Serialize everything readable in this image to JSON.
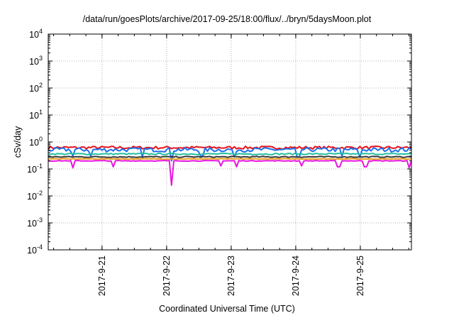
{
  "chart_data": {
    "type": "line",
    "title": "/data/run/goesPlots/archive/2017-09-25/18:00/flux/../bryn/5daysMoon.plot",
    "xlabel": "Coordinated Universal Time (UTC)",
    "ylabel": "cSv/day",
    "yscale": "log",
    "ylim": [
      0.0001,
      10000
    ],
    "xlim": [
      "2017-09-20T04:00",
      "2017-09-25T19:00"
    ],
    "grid": true,
    "xticks": [
      {
        "date": "2017-09-21T00:00",
        "label": "2017-9-21"
      },
      {
        "date": "2017-09-22T00:00",
        "label": "2017-9-22"
      },
      {
        "date": "2017-09-23T00:00",
        "label": "2017-9-23"
      },
      {
        "date": "2017-09-24T00:00",
        "label": "2017-9-24"
      },
      {
        "date": "2017-09-25T00:00",
        "label": "2017-9-25"
      }
    ],
    "yticks": [
      {
        "value": 0.0001,
        "base": "10",
        "exp": "-4"
      },
      {
        "value": 0.001,
        "base": "10",
        "exp": "-3"
      },
      {
        "value": 0.01,
        "base": "10",
        "exp": "-2"
      },
      {
        "value": 0.1,
        "base": "10",
        "exp": "-1"
      },
      {
        "value": 1,
        "base": "10",
        "exp": "0"
      },
      {
        "value": 10,
        "base": "10",
        "exp": "1"
      },
      {
        "value": 100,
        "base": "10",
        "exp": "2"
      },
      {
        "value": 1000,
        "base": "10",
        "exp": "3"
      },
      {
        "value": 10000,
        "base": "10",
        "exp": "4"
      }
    ],
    "series": [
      {
        "color": "#e8111a",
        "level": 0.62,
        "jitter": 0.12,
        "dips": []
      },
      {
        "color": "#1f6fe8",
        "level": 0.52,
        "jitter": 0.18,
        "dips": [
          {
            "date": "2017-09-20T13:00",
            "value": 0.3
          },
          {
            "date": "2017-09-20T20:00",
            "value": 0.3
          },
          {
            "date": "2017-09-21T15:00",
            "value": 0.28
          },
          {
            "date": "2017-09-22T02:00",
            "value": 0.2
          },
          {
            "date": "2017-09-22T13:00",
            "value": 0.3
          },
          {
            "date": "2017-09-23T01:00",
            "value": 0.28
          },
          {
            "date": "2017-09-24T01:00",
            "value": 0.28
          },
          {
            "date": "2017-09-24T17:00",
            "value": 0.3
          },
          {
            "date": "2017-09-25T00:00",
            "value": 0.27
          }
        ]
      },
      {
        "color": "#22bfa0",
        "level": 0.36,
        "jitter": 0.06,
        "dips": []
      },
      {
        "color": "#3a3a3a",
        "level": 0.28,
        "jitter": 0.05,
        "dips": []
      },
      {
        "color": "#e8a020",
        "level": 0.235,
        "jitter": 0.03,
        "dips": []
      },
      {
        "color": "#e816e0",
        "level": 0.2,
        "jitter": 0.03,
        "dips": [
          {
            "date": "2017-09-20T13:00",
            "value": 0.11
          },
          {
            "date": "2017-09-21T04:00",
            "value": 0.12
          },
          {
            "date": "2017-09-22T02:00",
            "value": 0.025
          },
          {
            "date": "2017-09-22T20:00",
            "value": 0.13
          },
          {
            "date": "2017-09-23T02:00",
            "value": 0.12
          },
          {
            "date": "2017-09-24T02:00",
            "value": 0.13
          },
          {
            "date": "2017-09-24T16:00",
            "value": 0.12
          },
          {
            "date": "2017-09-25T02:00",
            "value": 0.12
          },
          {
            "date": "2017-09-25T18:00",
            "value": 0.11
          }
        ]
      }
    ]
  }
}
